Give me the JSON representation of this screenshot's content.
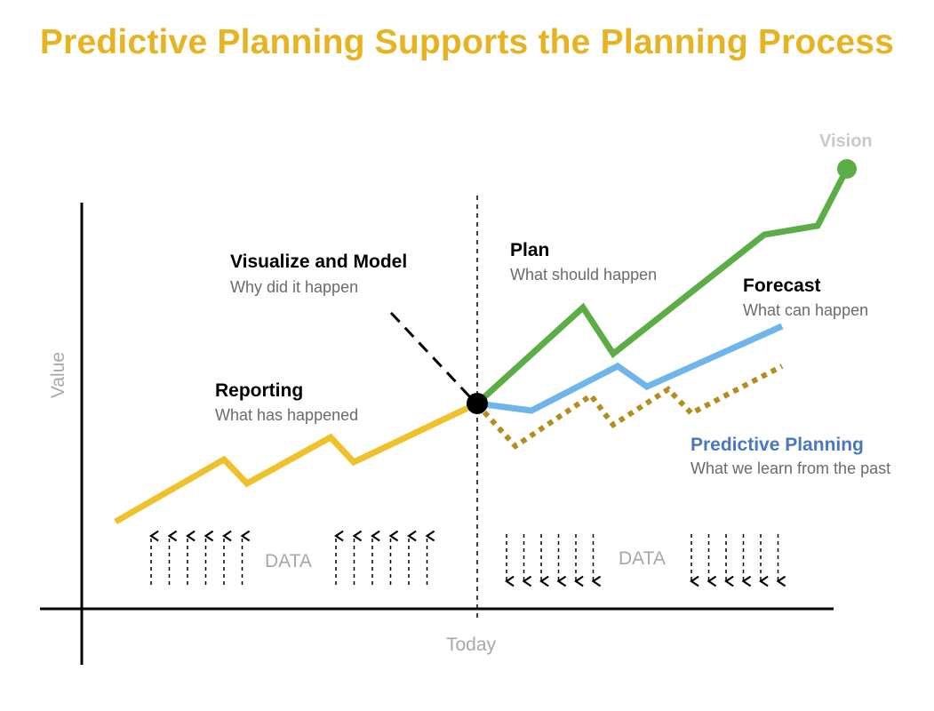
{
  "title": "Predictive Planning Supports the Planning Process",
  "colors": {
    "title": "#e6b422",
    "reporting": "#efc12b",
    "plan": "#5bad46",
    "forecast": "#6db5ea",
    "predictive_line": "#b48d1c",
    "predictive_label": "#4a77c0",
    "axis": "#000000",
    "muted": "#a8a8a8"
  },
  "axis": {
    "y_label": "Value",
    "x_marker": "Today"
  },
  "annotations": {
    "visualize": {
      "title": "Visualize and Model",
      "subtitle": "Why did it happen"
    },
    "reporting": {
      "title": "Reporting",
      "subtitle": "What has happened"
    },
    "plan": {
      "title": "Plan",
      "subtitle": "What should happen"
    },
    "forecast": {
      "title": "Forecast",
      "subtitle": "What can happen"
    },
    "predictive": {
      "title": "Predictive Planning",
      "subtitle": "What we learn from the past"
    },
    "vision": "Vision"
  },
  "data_labels": {
    "left": "DATA",
    "right": "DATA"
  }
}
